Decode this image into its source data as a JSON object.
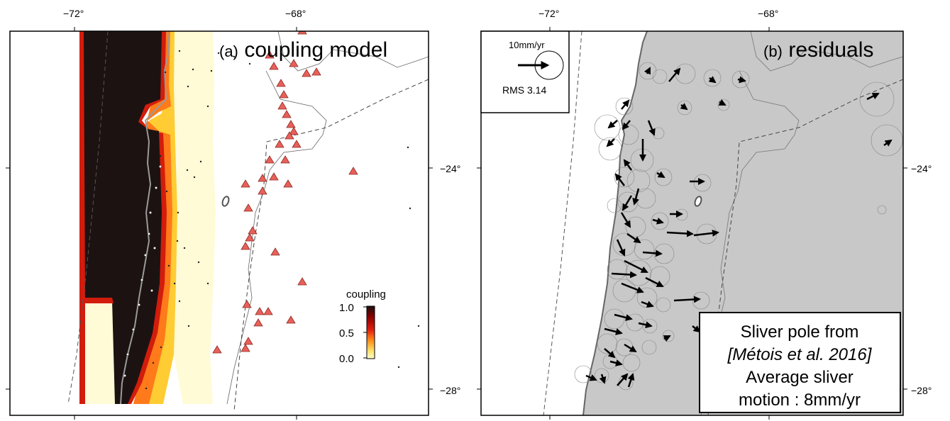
{
  "panel_a": {
    "title_prefix": "(a)",
    "title_main": "coupling model",
    "lon_ticks": [
      "−72°",
      "−68°"
    ],
    "colorbar": {
      "title": "coupling",
      "labels": [
        "1.0",
        "0.5",
        "0.0"
      ],
      "colors": [
        "#1a1010",
        "#8a0000",
        "#e11f0e",
        "#ff8c1a",
        "#ffe066",
        "#ffffcc"
      ]
    },
    "triangle_color": "#e8605a"
  },
  "panel_b": {
    "title_prefix": "(b)",
    "title_main": "residuals",
    "lon_ticks": [
      "−72°",
      "−68°"
    ],
    "lat_ticks": [
      "−24°",
      "−28°"
    ],
    "legend": {
      "scale_label": "10mm/yr",
      "rms_label": "RMS 3.14"
    },
    "note_lines": [
      "Sliver pole from",
      "[Métois et al. 2016]",
      "Average sliver",
      "motion : 8mm/yr"
    ],
    "land_color": "#c8c8c8"
  },
  "shared_lat_ticks": [
    "−24°",
    "−28°"
  ]
}
